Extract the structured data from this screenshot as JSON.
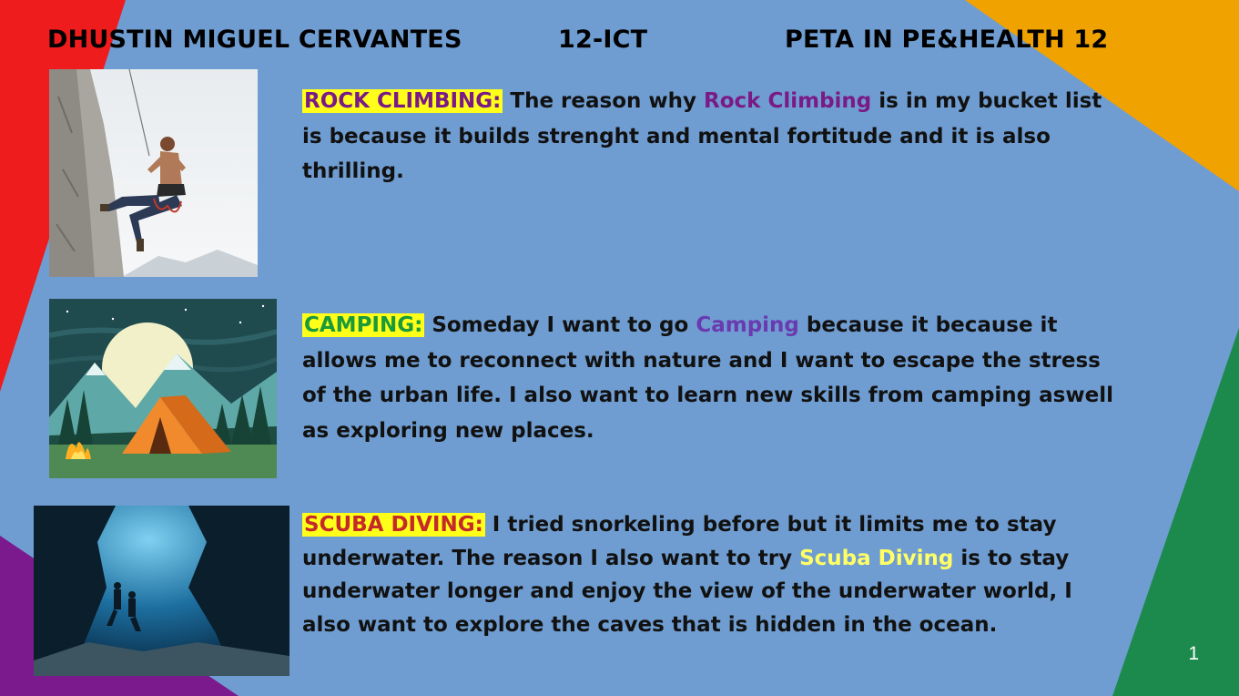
{
  "header": {
    "name": "DHUSTIN MIGUEL CERVANTES",
    "class": "12-ICT",
    "subject": "PETA IN PE&HEALTH 12"
  },
  "sections": [
    {
      "label": "ROCK CLIMBING:",
      "text_before": " The reason why ",
      "highlight": "Rock Climbing",
      "text_after": " is in my bucket list is because it builds strenght and mental fortitude and it is also thrilling."
    },
    {
      "label": "CAMPING:",
      "text_before": " Someday I want to go ",
      "highlight": "Camping",
      "text_after": " because it because it allows me to reconnect with nature and I want to escape the stress of the urban life. I also want to learn new skills from camping aswell as exploring new places."
    },
    {
      "label": "SCUBA DIVING:",
      "text_before": " I tried snorkeling before but it limits me to stay underwater. The reason I also want to try ",
      "highlight": "Scuba Diving",
      "text_after": " is to stay underwater longer and enjoy the view of the underwater world, I also want to explore the caves that is hidden in the ocean."
    }
  ],
  "page_number": "1",
  "colors": {
    "background": "#6f9dd1",
    "red_shape": "#ee1c1c",
    "orange_shape": "#f0a200",
    "green_shape": "#1b8a4c",
    "purple_shape": "#7b1a8c",
    "label_highlight": "#ffff1a"
  }
}
